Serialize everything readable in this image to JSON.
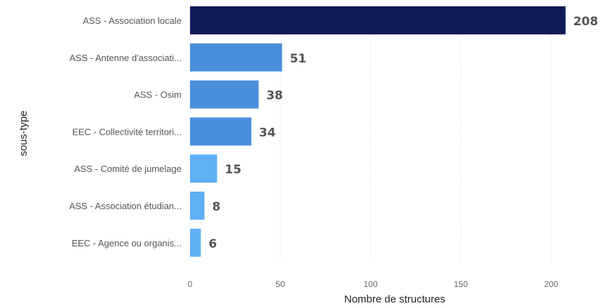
{
  "chart_data": {
    "type": "bar",
    "orientation": "horizontal",
    "categories": [
      "ASS - Association locale",
      "ASS - Antenne d'associati...",
      "ASS - Osim",
      "EEC - Collectivité territori...",
      "ASS - Comité de jumelage",
      "ASS - Association étudian...",
      "EEC - Agence ou organis..."
    ],
    "values": [
      208,
      51,
      38,
      34,
      15,
      8,
      6
    ],
    "bar_colors": [
      "#0f1a57",
      "#4a8fdc",
      "#4a8fdc",
      "#4a8fdc",
      "#5fb0f5",
      "#5fb0f5",
      "#5fb0f5"
    ],
    "xlabel": "Nombre de structures",
    "ylabel": "sous-type",
    "xlim": [
      0,
      210
    ],
    "xticks": [
      0,
      50,
      100,
      150,
      200
    ],
    "grid": true,
    "legend": "none"
  }
}
